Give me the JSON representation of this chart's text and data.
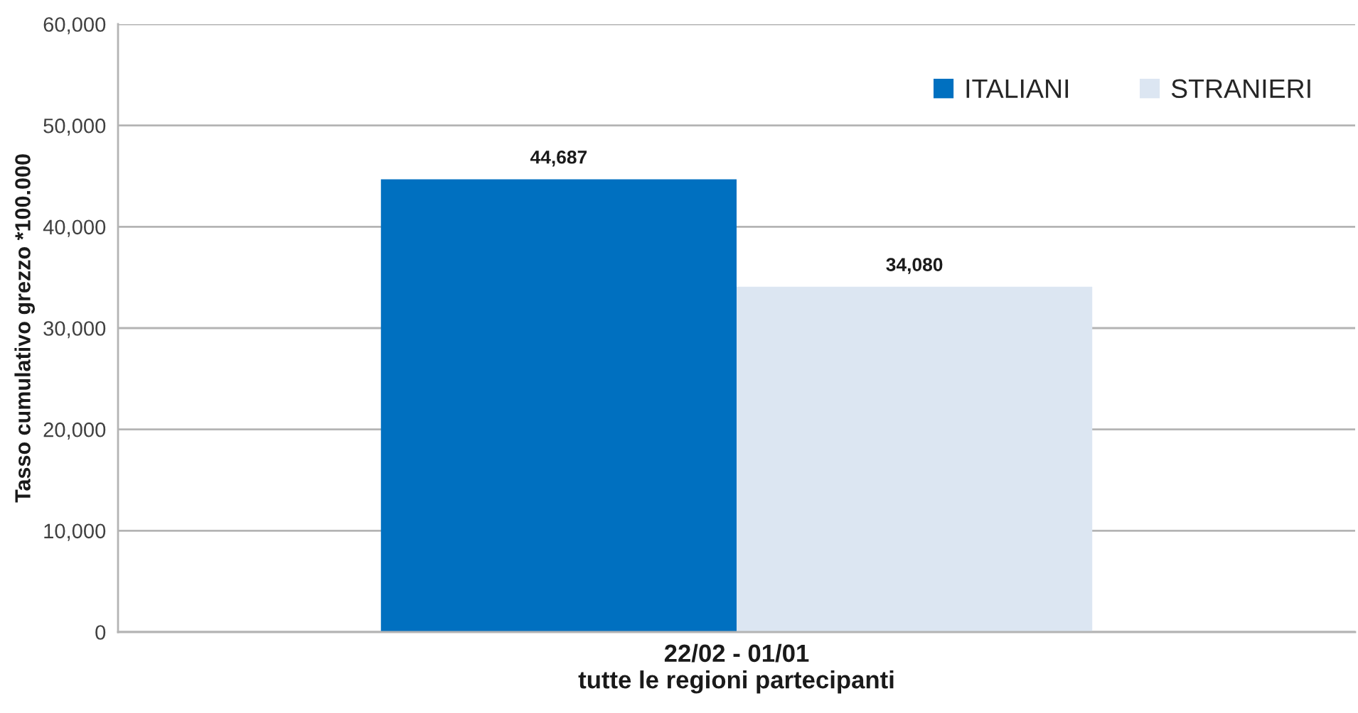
{
  "chart_data": {
    "type": "bar",
    "ylabel": "Tasso cumulativo grezzo *100.000",
    "categories": [
      "22/02 - 01/01\ntutte le regioni partecipanti"
    ],
    "series": [
      {
        "name": "ITALIANI",
        "color": "#0070c0",
        "values": [
          44687
        ],
        "value_labels": [
          "44,687"
        ]
      },
      {
        "name": "STRANIERI",
        "color": "#dce6f2",
        "values": [
          34080
        ],
        "value_labels": [
          "34,080"
        ]
      }
    ],
    "ylim": [
      0,
      60000
    ],
    "yticks": [
      {
        "value": 0,
        "label": "0"
      },
      {
        "value": 10000,
        "label": "10,000"
      },
      {
        "value": 20000,
        "label": "20,000"
      },
      {
        "value": 30000,
        "label": "30,000"
      },
      {
        "value": 40000,
        "label": "40,000"
      },
      {
        "value": 50000,
        "label": "50,000"
      },
      {
        "value": 60000,
        "label": "60,000"
      }
    ],
    "grid": "y",
    "legend": "top right"
  }
}
